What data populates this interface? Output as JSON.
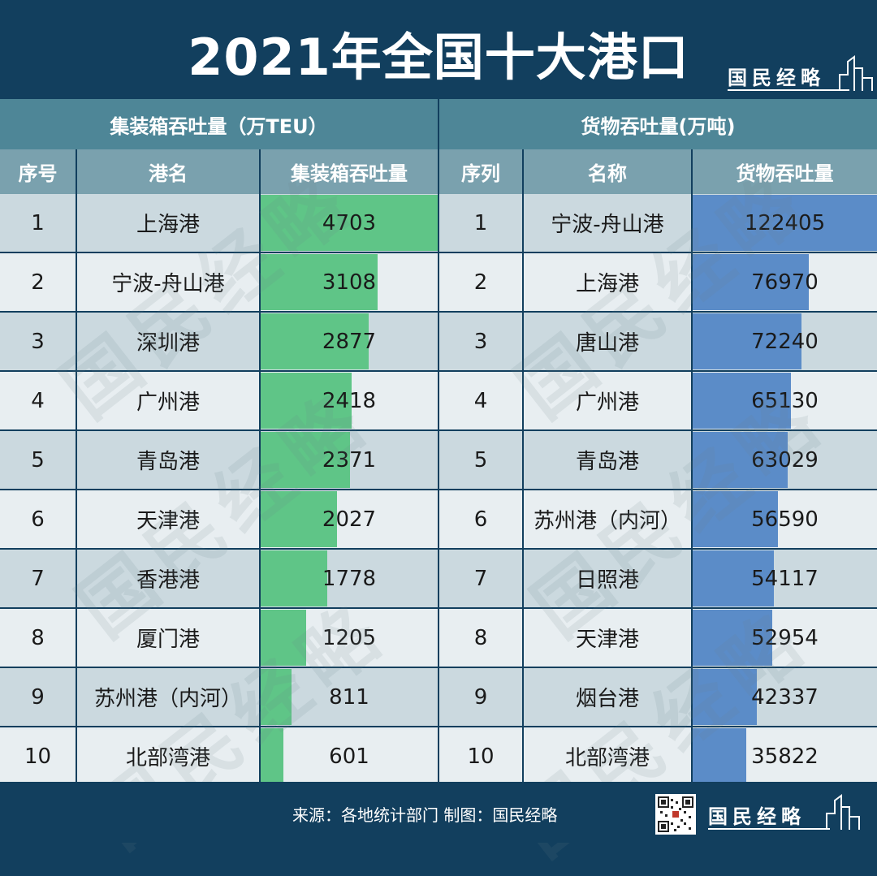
{
  "title": "2021年全国十大港口",
  "brand": "国民经略",
  "watermark": "国民经略",
  "left_group_header": "集装箱吞吐量（万TEU）",
  "right_group_header": "货物吞吐量(万吨)",
  "left_columns": [
    "序号",
    "港名",
    "集装箱吞吐量"
  ],
  "right_columns": [
    "序列",
    "名称",
    "货物吞吐量"
  ],
  "colors": {
    "container_bar": "#5fc587",
    "cargo_bar": "#5b8cc8",
    "header": "#123f5e"
  },
  "footer": {
    "source": "来源：各地统计部门 制图：国民经略"
  },
  "chart_data": [
    {
      "type": "bar",
      "orientation": "horizontal",
      "title": "集装箱吞吐量（万TEU）",
      "ranks": [
        "1",
        "2",
        "3",
        "4",
        "5",
        "6",
        "7",
        "8",
        "9",
        "10"
      ],
      "categories": [
        "上海港",
        "宁波-舟山港",
        "深圳港",
        "广州港",
        "青岛港",
        "天津港",
        "香港港",
        "厦门港",
        "苏州港（内河）",
        "北部湾港"
      ],
      "values": [
        4703,
        3108,
        2877,
        2418,
        2371,
        2027,
        1778,
        1205,
        811,
        601
      ]
    },
    {
      "type": "bar",
      "orientation": "horizontal",
      "title": "货物吞吐量(万吨)",
      "ranks": [
        "1",
        "2",
        "3",
        "4",
        "5",
        "6",
        "7",
        "8",
        "9",
        "10"
      ],
      "categories": [
        "宁波-舟山港",
        "上海港",
        "唐山港",
        "广州港",
        "青岛港",
        "苏州港（内河）",
        "日照港",
        "天津港",
        "烟台港",
        "北部湾港"
      ],
      "values": [
        122405,
        76970,
        72240,
        65130,
        63029,
        56590,
        54117,
        52954,
        42337,
        35822
      ]
    }
  ]
}
